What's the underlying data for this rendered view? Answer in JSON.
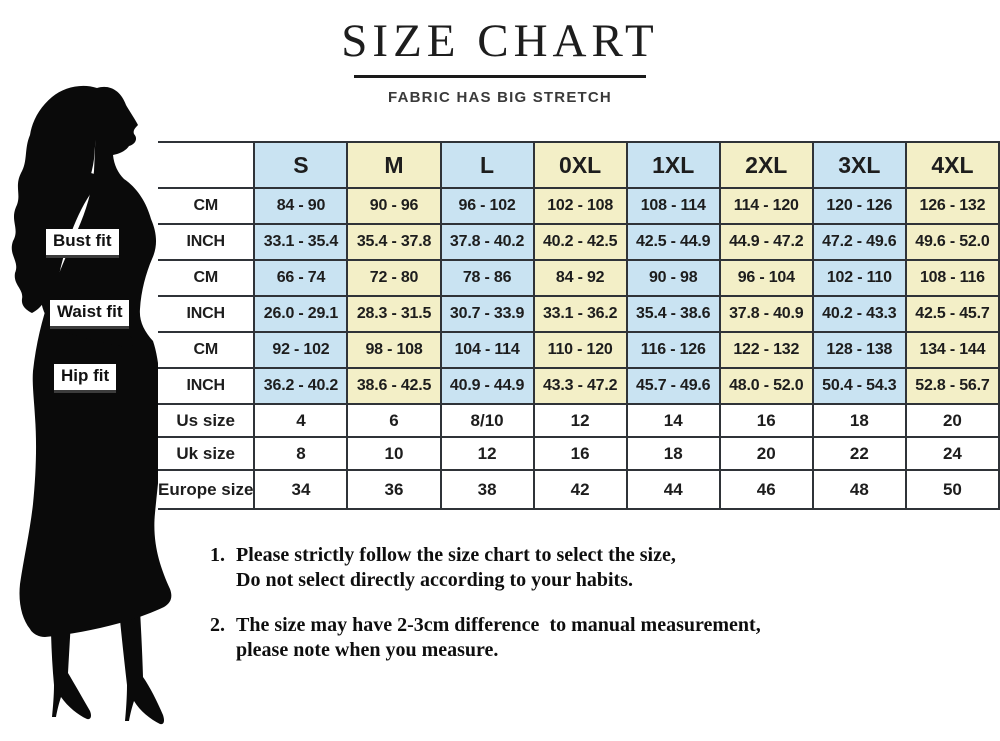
{
  "page": {
    "title": "SIZE CHART",
    "subtitle": "FABRIC HAS BIG STRETCH"
  },
  "figure": {
    "name": "woman-silhouette",
    "color": "#0a0a0a"
  },
  "chart_data": {
    "type": "table",
    "title": "SIZE CHART",
    "subtitle": "FABRIC HAS BIG STRETCH",
    "columns": [
      "S",
      "M",
      "L",
      "0XL",
      "1XL",
      "2XL",
      "3XL",
      "4XL"
    ],
    "row_groups": [
      {
        "label": "Bust fit",
        "rows": [
          {
            "unit": "CM",
            "values": [
              "84 - 90",
              "90 - 96",
              "96 - 102",
              "102 - 108",
              "108 - 114",
              "114 - 120",
              "120 - 126",
              "126 - 132"
            ]
          },
          {
            "unit": "INCH",
            "values": [
              "33.1 - 35.4",
              "35.4 - 37.8",
              "37.8 - 40.2",
              "40.2 - 42.5",
              "42.5 - 44.9",
              "44.9 - 47.2",
              "47.2 - 49.6",
              "49.6 - 52.0"
            ]
          }
        ]
      },
      {
        "label": "Waist fit",
        "rows": [
          {
            "unit": "CM",
            "values": [
              "66 - 74",
              "72 - 80",
              "78 - 86",
              "84 - 92",
              "90 - 98",
              "96 - 104",
              "102 - 110",
              "108 - 116"
            ]
          },
          {
            "unit": "INCH",
            "values": [
              "26.0 - 29.1",
              "28.3 - 31.5",
              "30.7 - 33.9",
              "33.1 - 36.2",
              "35.4 - 38.6",
              "37.8 - 40.9",
              "40.2 - 43.3",
              "42.5 - 45.7"
            ]
          }
        ]
      },
      {
        "label": "Hip fit",
        "rows": [
          {
            "unit": "CM",
            "values": [
              "92 - 102",
              "98 - 108",
              "104 - 114",
              "110 - 120",
              "116 - 126",
              "122 - 132",
              "128 - 138",
              "134 - 144"
            ]
          },
          {
            "unit": "INCH",
            "values": [
              "36.2 - 40.2",
              "38.6 - 42.5",
              "40.9 - 44.9",
              "43.3 - 47.2",
              "45.7 - 49.6",
              "48.0 - 52.0",
              "50.4 - 54.3",
              "52.8 - 56.7"
            ]
          }
        ]
      }
    ],
    "size_rows": [
      {
        "label": "Us size",
        "values": [
          "4",
          "6",
          "8/10",
          "12",
          "14",
          "16",
          "18",
          "20"
        ]
      },
      {
        "label": "Uk size",
        "values": [
          "8",
          "10",
          "12",
          "16",
          "18",
          "20",
          "22",
          "24"
        ]
      },
      {
        "label": "Europe size",
        "values": [
          "34",
          "36",
          "38",
          "42",
          "44",
          "46",
          "48",
          "50"
        ]
      }
    ],
    "column_stripe_colors": {
      "even": "#c9e3f2",
      "odd": "#f3efc7"
    },
    "layout": {
      "grid": true,
      "header_position": "top",
      "legend": "none"
    }
  },
  "notes": [
    {
      "number": "1.",
      "lines": [
        "Please strictly follow the size chart to select the size,",
        "Do not select directly according to your habits."
      ]
    },
    {
      "number": "2.",
      "lines": [
        "The size may have 2-3cm difference  to manual measurement,",
        "please note when you measure."
      ]
    }
  ],
  "colors": {
    "background": "#ffffff",
    "table_border": "#2f3338",
    "cell_blue": "#c9e3f2",
    "cell_yellow": "#f3efc7",
    "text": "#1d1d1d",
    "subtitle_text": "#3a3a3a",
    "silhouette": "#0a0a0a"
  }
}
